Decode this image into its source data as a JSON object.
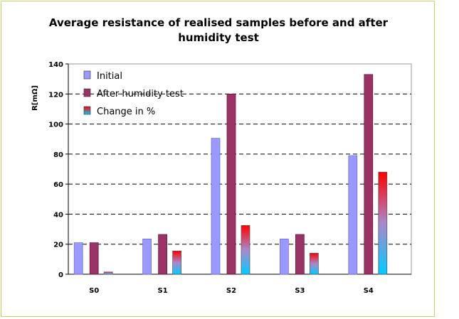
{
  "chart_data": {
    "type": "bar",
    "title": "Average resistance of realised samples before and after humidity test",
    "ylabel": "R[mΩ]",
    "xlabel": "",
    "ylim": [
      0,
      140
    ],
    "yticks": [
      0,
      20,
      40,
      60,
      80,
      100,
      120,
      140
    ],
    "grid": "horizontal-dashed",
    "legend_position": "top-left",
    "categories": [
      "S0",
      "S1",
      "S2",
      "S3",
      "S4"
    ],
    "series": [
      {
        "name": "Initial",
        "values": [
          21,
          23.5,
          90.5,
          23.5,
          79
        ],
        "color": "#9999ff"
      },
      {
        "name": "After humidity test",
        "values": [
          21,
          26.5,
          120,
          26.5,
          133
        ],
        "color": "#993366"
      },
      {
        "name": "Change in %",
        "values": [
          1.5,
          15.5,
          32.5,
          14,
          68
        ],
        "color_top": "#ff0000",
        "color_bottom": "#00ccff"
      }
    ]
  }
}
